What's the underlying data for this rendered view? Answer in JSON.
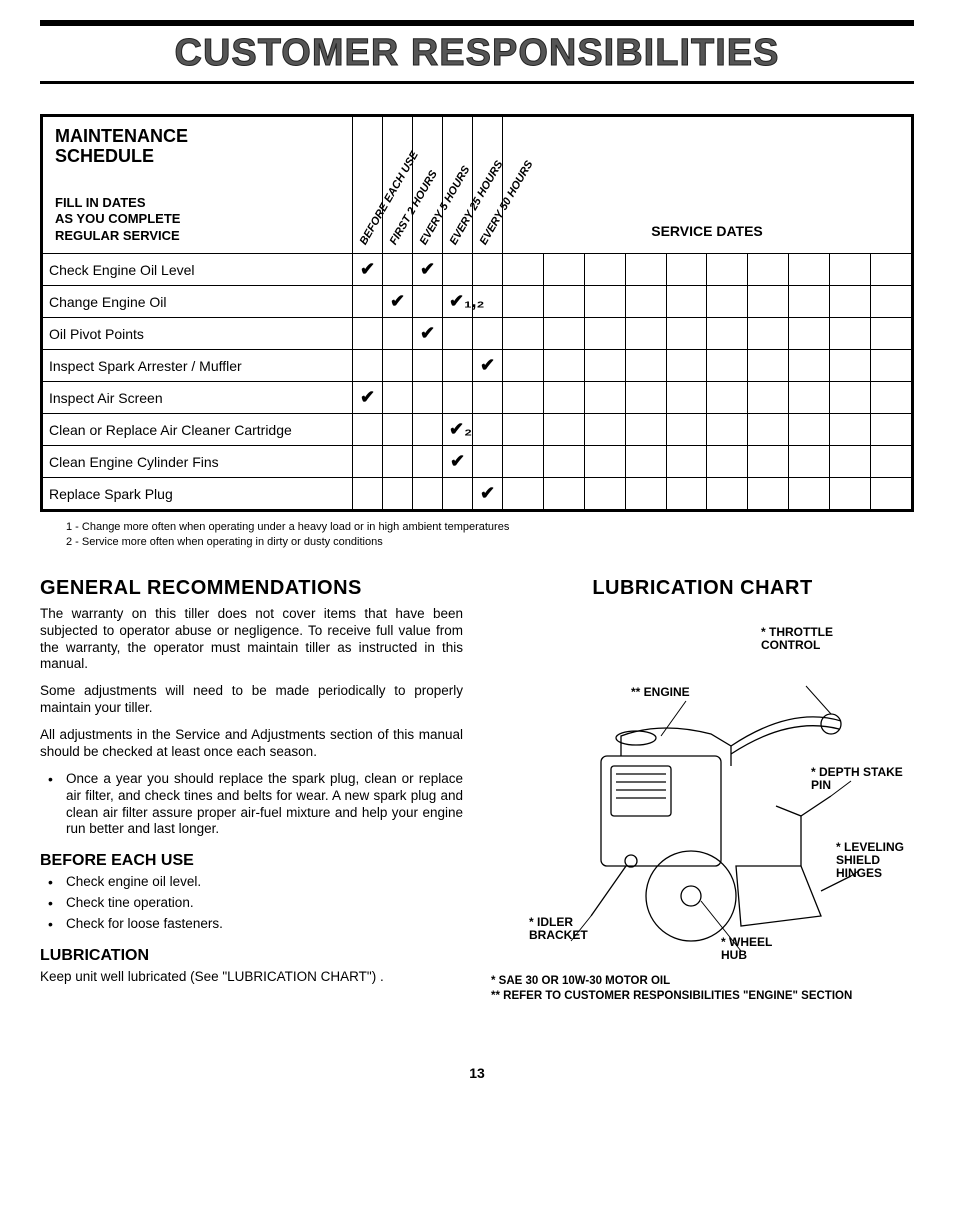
{
  "page": {
    "title": "CUSTOMER RESPONSIBILITIES",
    "page_number": "13"
  },
  "schedule": {
    "header_title_l1": "MAINTENANCE",
    "header_title_l2": "SCHEDULE",
    "fill_in_l1": "FILL IN DATES",
    "fill_in_l2": "AS YOU COMPLETE",
    "fill_in_l3": "REGULAR SERVICE",
    "service_dates": "SERVICE DATES",
    "col_headers": [
      "BEFORE EACH USE",
      "FIRST 2 HOURS",
      "EVERY 5 HOURS",
      "EVERY 25 HOURS",
      "EVERY 50 HOURS"
    ],
    "rows": [
      {
        "task": "Check Engine Oil Level",
        "marks": [
          "✔",
          "",
          "✔",
          "",
          ""
        ]
      },
      {
        "task": "Change Engine Oil",
        "marks": [
          "",
          "✔",
          "",
          "✔₁,₂",
          ""
        ]
      },
      {
        "task": "Oil Pivot Points",
        "marks": [
          "",
          "",
          "✔",
          "",
          ""
        ]
      },
      {
        "task": "Inspect Spark Arrester / Muffler",
        "marks": [
          "",
          "",
          "",
          "",
          "✔"
        ]
      },
      {
        "task": "Inspect Air Screen",
        "marks": [
          "✔",
          "",
          "",
          "",
          ""
        ]
      },
      {
        "task": "Clean or Replace Air Cleaner Cartridge",
        "marks": [
          "",
          "",
          "",
          "✔₂",
          ""
        ]
      },
      {
        "task": "Clean Engine Cylinder Fins",
        "marks": [
          "",
          "",
          "",
          "✔",
          ""
        ]
      },
      {
        "task": "Replace Spark Plug",
        "marks": [
          "",
          "",
          "",
          "",
          "✔"
        ]
      }
    ],
    "num_service_date_cols": 10,
    "footnote1": "1 - Change more often when operating under a heavy load or in high ambient temperatures",
    "footnote2": "2 - Service more often when operating in dirty or dusty conditions"
  },
  "left": {
    "h_general": "GENERAL RECOMMENDATIONS",
    "p1": "The warranty on this tiller does not cover items that have been subjected to operator abuse or negligence. To receive full value from the warranty, the operator must maintain tiller as instructed in this manual.",
    "p2": "Some adjustments will need to be made periodically to properly maintain your tiller.",
    "p3": "All adjustments in the Service and Adjustments section of this manual should be checked at least once each season.",
    "bullet_annual": "Once a year you should replace the spark plug, clean or replace air filter, and check tines and belts for wear. A new spark plug and clean air filter assure proper air-fuel mixture and help your engine run better and last longer.",
    "h_before": "BEFORE EACH USE",
    "b1": "Check engine oil level.",
    "b2": "Check tine operation.",
    "b3": "Check for loose fasteners.",
    "h_lub": "LUBRICATION",
    "p_lub": "Keep unit well lubricated (See \"LUBRICATION CHART\") ."
  },
  "right": {
    "h_chart": "LUBRICATION CHART",
    "labels": {
      "throttle": "* THROTTLE CONTROL",
      "engine": "** ENGINE",
      "depth": "* DEPTH STAKE PIN",
      "leveling": "* LEVELING SHIELD HINGES",
      "idler": "* IDLER BRACKET",
      "wheel": "* WHEEL HUB"
    },
    "foot1": "* SAE 30 OR 10W-30 MOTOR OIL",
    "foot2": "** REFER TO CUSTOMER RESPONSIBILITIES \"ENGINE\" SECTION"
  },
  "style": {
    "check_glyph": "✔",
    "colors": {
      "page_bg": "#ffffff",
      "text": "#000000",
      "title_fill": "#555555"
    }
  }
}
